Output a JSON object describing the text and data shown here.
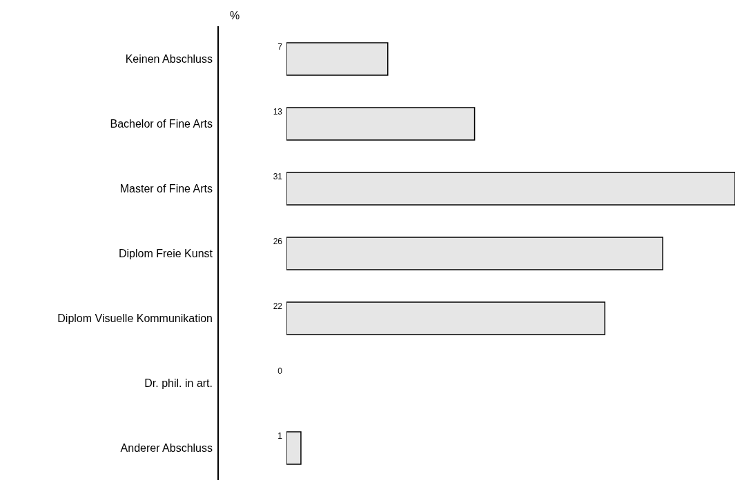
{
  "chart_data": {
    "type": "bar",
    "orientation": "horizontal",
    "xlabel": "%",
    "categories": [
      "Keinen Abschluss",
      "Bachelor of Fine Arts",
      "Master of Fine Arts",
      "Diplom Freie Kunst",
      "Diplom Visuelle Kommunikation",
      "Dr. phil. in art.",
      "Anderer Abschluss"
    ],
    "values": [
      7,
      13,
      31,
      26,
      22,
      0,
      1
    ],
    "color": "#e6e6e6",
    "data_labels": true
  }
}
